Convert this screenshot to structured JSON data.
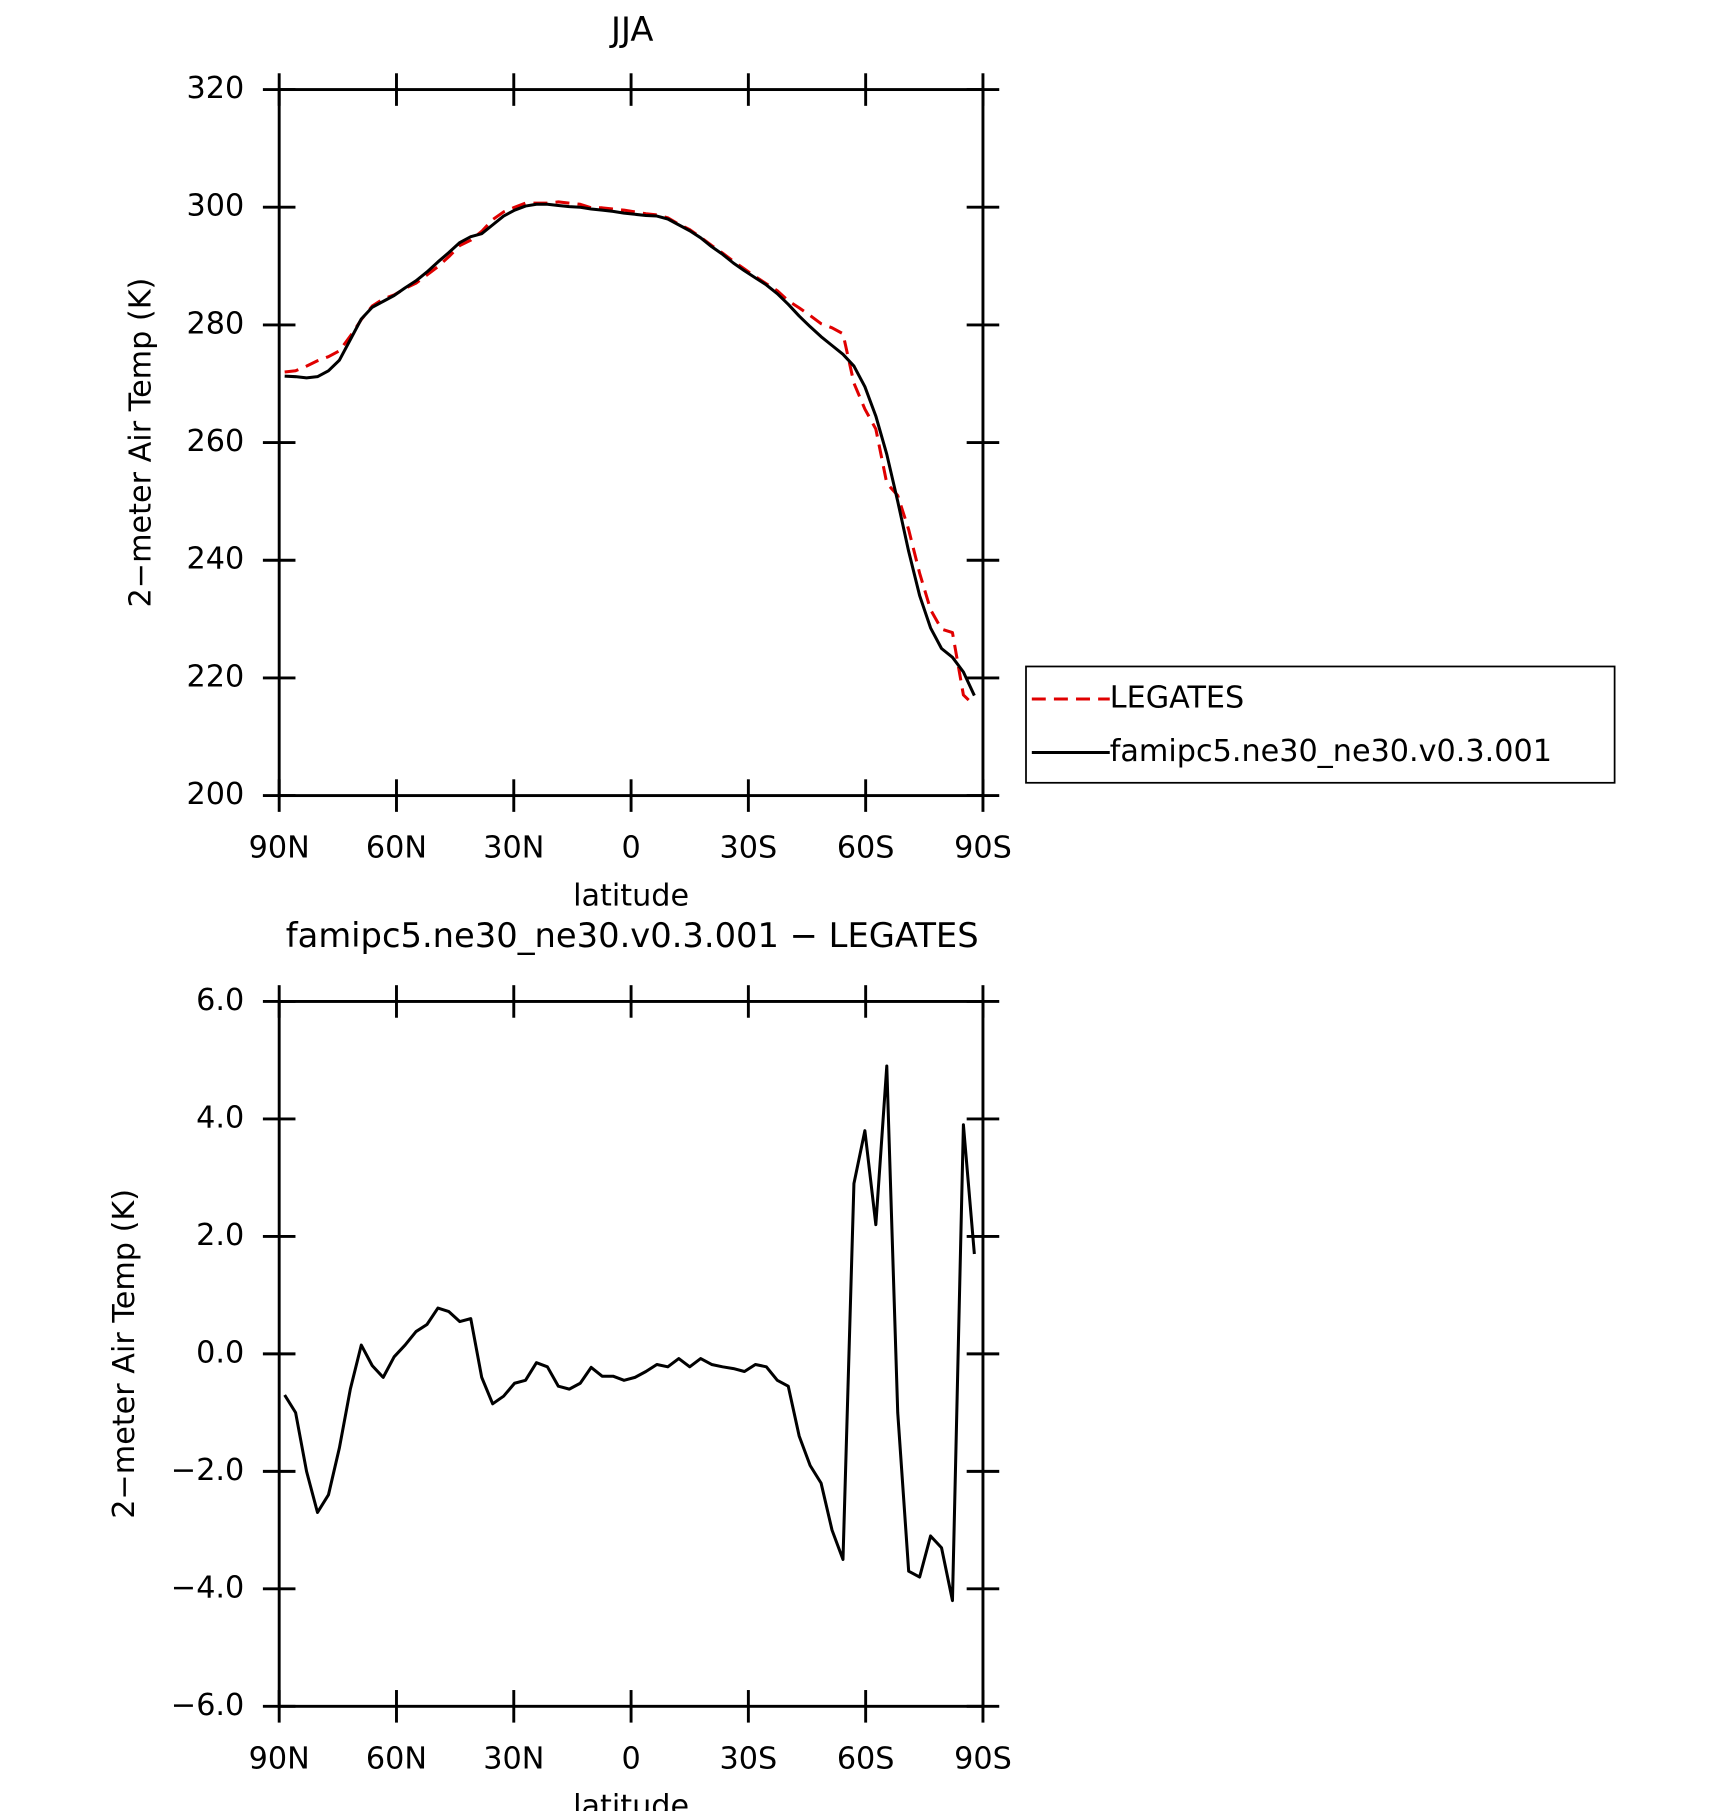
{
  "chart_data": [
    {
      "type": "line",
      "title": "JJA",
      "xlabel": "latitude",
      "ylabel": "2−meter Air Temp (K)",
      "xlim": [
        90,
        -90
      ],
      "ylim": [
        200,
        320
      ],
      "xticks": [
        {
          "value": 90,
          "label": "90N"
        },
        {
          "value": 60,
          "label": "60N"
        },
        {
          "value": 30,
          "label": "30N"
        },
        0,
        {
          "value": -30,
          "label": "30S"
        },
        {
          "value": -60,
          "label": "60S"
        },
        {
          "value": -90,
          "label": "90S"
        }
      ],
      "yticks": [
        200,
        220,
        240,
        260,
        280,
        300,
        320
      ],
      "legend": "right",
      "x": [
        88.6,
        85.8,
        83.0,
        80.2,
        77.4,
        74.6,
        71.8,
        69.0,
        66.2,
        63.4,
        60.6,
        57.8,
        55.0,
        52.2,
        49.4,
        46.6,
        43.8,
        41.0,
        38.2,
        35.4,
        32.6,
        29.8,
        27.0,
        24.2,
        21.4,
        18.6,
        15.8,
        13.0,
        10.2,
        7.4,
        4.6,
        1.8,
        -1.0,
        -3.8,
        -6.6,
        -9.4,
        -12.2,
        -15.0,
        -17.8,
        -20.6,
        -23.4,
        -26.2,
        -29.0,
        -31.8,
        -34.6,
        -37.4,
        -40.2,
        -43.0,
        -45.8,
        -48.6,
        -51.4,
        -54.2,
        -57.0,
        -59.8,
        -62.6,
        -65.4,
        -68.2,
        -71.0,
        -73.8,
        -76.6,
        -79.4,
        -82.2,
        -85.0,
        -87.8
      ],
      "series": [
        {
          "name": "LEGATES",
          "color": "#e00000",
          "dash": true,
          "values": [
            272.0,
            272.2,
            273.0,
            273.9,
            274.6,
            275.6,
            278.1,
            280.9,
            283.2,
            284.4,
            285.1,
            286.2,
            287.1,
            288.5,
            289.9,
            291.6,
            293.5,
            294.4,
            295.9,
            297.9,
            299.2,
            300.0,
            300.7,
            300.7,
            300.7,
            300.9,
            300.7,
            300.5,
            299.9,
            299.9,
            299.7,
            299.5,
            299.2,
            298.9,
            298.7,
            298.2,
            297.1,
            296.2,
            294.9,
            293.5,
            292.2,
            290.8,
            289.5,
            288.2,
            287.0,
            285.8,
            284.1,
            282.9,
            281.6,
            280.2,
            279.5,
            278.5,
            270.1,
            265.7,
            262.3,
            253.1,
            251.0,
            245.2,
            237.8,
            231.6,
            228.3,
            227.7,
            217.1,
            215.3
          ]
        },
        {
          "name": "famipc5.ne30_ne30.v0.3.001",
          "color": "#000000",
          "dash": false,
          "values": [
            271.3,
            271.2,
            271.0,
            271.2,
            272.2,
            274.0,
            277.5,
            281,
            283,
            284,
            285,
            286.3,
            287.5,
            289,
            290.7,
            292.3,
            294,
            295,
            295.5,
            297,
            298.5,
            299.5,
            300.2,
            300.5,
            300.5,
            300.3,
            300.1,
            300,
            299.7,
            299.5,
            299.3,
            299,
            298.8,
            298.6,
            298.5,
            298,
            297,
            296,
            294.8,
            293.3,
            292,
            290.5,
            289.2,
            288,
            286.8,
            285.3,
            283.5,
            281.5,
            279.7,
            278,
            276.5,
            275,
            273,
            269.5,
            264.5,
            258,
            250,
            241.5,
            234,
            228.5,
            225,
            223.5,
            221,
            217
          ]
        }
      ]
    },
    {
      "type": "line",
      "title": "famipc5.ne30_ne30.v0.3.001 − LEGATES",
      "xlabel": "latitude",
      "ylabel": "2−meter Air Temp (K)",
      "xlim": [
        90,
        -90
      ],
      "ylim": [
        -6,
        6
      ],
      "xticks": [
        {
          "value": 90,
          "label": "90N"
        },
        {
          "value": 60,
          "label": "60N"
        },
        {
          "value": 30,
          "label": "30N"
        },
        0,
        {
          "value": -30,
          "label": "30S"
        },
        {
          "value": -60,
          "label": "60S"
        },
        {
          "value": -90,
          "label": "90S"
        }
      ],
      "yticks": [
        {
          "value": -6,
          "label": "−6.0"
        },
        {
          "value": -4,
          "label": "−4.0"
        },
        {
          "value": -2,
          "label": "−2.0"
        },
        {
          "value": 0,
          "label": "0.0"
        },
        {
          "value": 2,
          "label": "2.0"
        },
        {
          "value": 4,
          "label": "4.0"
        },
        {
          "value": 6,
          "label": "6.0"
        }
      ],
      "x": [
        88.6,
        85.8,
        83.0,
        80.2,
        77.4,
        74.6,
        71.8,
        69.0,
        66.2,
        63.4,
        60.6,
        57.8,
        55.0,
        52.2,
        49.4,
        46.6,
        43.8,
        41.0,
        38.2,
        35.4,
        32.6,
        29.8,
        27.0,
        24.2,
        21.4,
        18.6,
        15.8,
        13.0,
        10.2,
        7.4,
        4.6,
        1.8,
        -1.0,
        -3.8,
        -6.6,
        -9.4,
        -12.2,
        -15.0,
        -17.8,
        -20.6,
        -23.4,
        -26.2,
        -29.0,
        -31.8,
        -34.6,
        -37.4,
        -40.2,
        -43.0,
        -45.8,
        -48.6,
        -51.4,
        -54.2,
        -57.0,
        -59.8,
        -62.6,
        -65.4,
        -68.2,
        -71.0,
        -73.8,
        -76.6,
        -79.4,
        -82.2,
        -85.0,
        -87.8
      ],
      "series": [
        {
          "color": "#000000",
          "dash": false,
          "values": [
            -0.7,
            -1.0,
            -2.0,
            -2.7,
            -2.4,
            -1.6,
            -0.6,
            0.15,
            -0.2,
            -0.4,
            -0.05,
            0.15,
            0.38,
            0.5,
            0.78,
            0.72,
            0.55,
            0.6,
            -0.4,
            -0.85,
            -0.72,
            -0.5,
            -0.45,
            -0.15,
            -0.22,
            -0.55,
            -0.6,
            -0.5,
            -0.23,
            -0.38,
            -0.38,
            -0.45,
            -0.4,
            -0.3,
            -0.18,
            -0.22,
            -0.08,
            -0.22,
            -0.08,
            -0.18,
            -0.22,
            -0.25,
            -0.3,
            -0.18,
            -0.22,
            -0.45,
            -0.55,
            -1.4,
            -1.9,
            -2.2,
            -3.0,
            -3.5,
            2.9,
            3.8,
            2.2,
            4.9,
            -1.0,
            -3.7,
            -3.8,
            -3.1,
            -3.3,
            -4.2,
            3.9,
            1.7
          ]
        }
      ]
    }
  ]
}
